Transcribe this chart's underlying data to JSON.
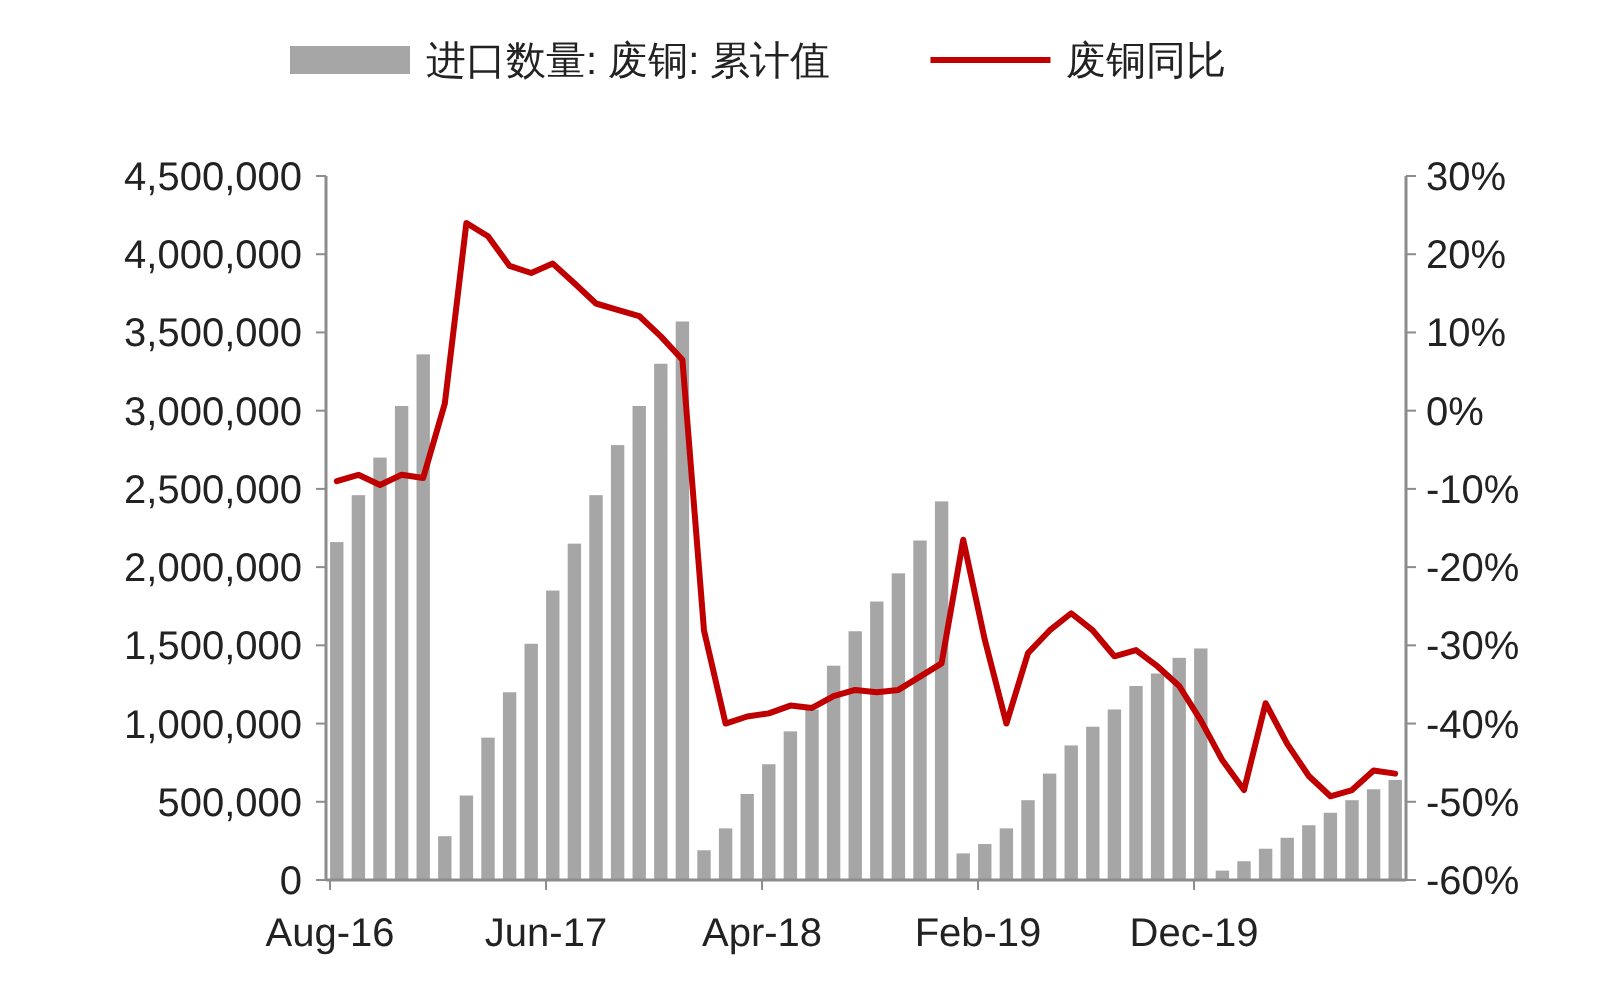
{
  "chart_data": {
    "type": "bar",
    "legend": "top",
    "grid": false,
    "categories": [
      "Aug-16",
      null,
      null,
      null,
      null,
      null,
      null,
      null,
      null,
      null,
      "Jun-17",
      null,
      null,
      null,
      null,
      null,
      null,
      null,
      null,
      null,
      "Apr-18",
      null,
      null,
      null,
      null,
      null,
      null,
      null,
      null,
      null,
      "Feb-19",
      null,
      null,
      null,
      null,
      null,
      null,
      null,
      null,
      null,
      "Dec-19",
      null,
      null,
      null,
      null,
      null,
      null,
      null,
      null,
      null
    ],
    "series": [
      {
        "name": "进口数量: 废铜: 累计值",
        "color": "#a6a6a6",
        "values": [
          2160000,
          2460000,
          2700000,
          3030000,
          3360000,
          280000,
          540000,
          910000,
          1200000,
          1510000,
          1850000,
          2150000,
          2460000,
          2780000,
          3030000,
          3300000,
          3570000,
          190000,
          330000,
          550000,
          740000,
          950000,
          1090000,
          1370000,
          1590000,
          1780000,
          1960000,
          2170000,
          2420000,
          170000,
          230000,
          330000,
          510000,
          680000,
          860000,
          980000,
          1090000,
          1240000,
          1320000,
          1420000,
          1480000,
          60000,
          120000,
          200000,
          270000,
          350000,
          430000,
          510000,
          580000,
          640000
        ]
      },
      {
        "name": "废铜同比",
        "type": "line",
        "axis": "y2",
        "color": "#c00000",
        "values": [
          -9.0,
          -8.2,
          -9.5,
          -8.2,
          -8.6,
          0.9,
          24.0,
          22.3,
          18.5,
          17.6,
          18.8,
          16.3,
          13.7,
          12.9,
          12.1,
          9.5,
          6.5,
          -28.1,
          -40.0,
          -39.1,
          -38.7,
          -37.7,
          -38.0,
          -36.5,
          -35.7,
          -36.0,
          -35.7,
          -34.0,
          -32.3,
          -16.5,
          -29.3,
          -40.0,
          -31.0,
          -28.1,
          -25.9,
          -28.1,
          -31.4,
          -30.6,
          -32.7,
          -35.2,
          -39.6,
          -44.7,
          -48.5,
          -37.4,
          -42.6,
          -46.7,
          -49.3,
          -48.5,
          -46.0,
          -46.4
        ]
      }
    ],
    "ylim": [
      0,
      4500000
    ],
    "yticks": [
      0,
      {
        "value": 500000,
        "label": "500,000"
      },
      {
        "value": 1000000,
        "label": "1,000,000"
      },
      {
        "value": 1500000,
        "label": "1,500,000"
      },
      {
        "value": 2000000,
        "label": "2,000,000"
      },
      {
        "value": 2500000,
        "label": "2,500,000"
      },
      {
        "value": 3000000,
        "label": "3,000,000"
      },
      {
        "value": 3500000,
        "label": "3,500,000"
      },
      {
        "value": 4000000,
        "label": "4,000,000"
      },
      {
        "value": 4500000,
        "label": "4,500,000"
      }
    ],
    "y2lim": [
      -60,
      30
    ],
    "y2ticks": [
      {
        "value": -60,
        "label": "-60%"
      },
      {
        "value": -50,
        "label": "-50%"
      },
      {
        "value": -40,
        "label": "-40%"
      },
      {
        "value": -30,
        "label": "-30%"
      },
      {
        "value": -20,
        "label": "-20%"
      },
      {
        "value": -10,
        "label": "-10%"
      },
      {
        "value": 0,
        "label": "0%"
      },
      {
        "value": 10,
        "label": "10%"
      },
      {
        "value": 20,
        "label": "20%"
      },
      {
        "value": 30,
        "label": "30%"
      }
    ]
  }
}
